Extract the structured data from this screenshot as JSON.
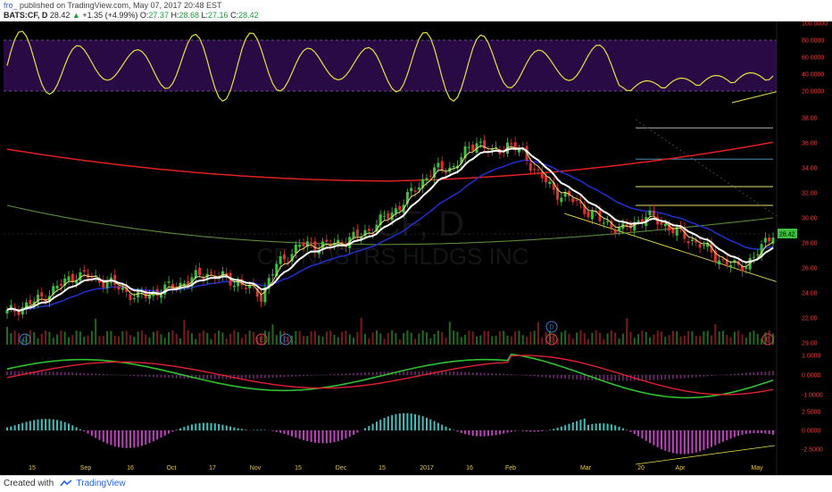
{
  "header": {
    "user": "fro_",
    "published": "published on TradingView.com, May 07, 2017 20:48 EST",
    "symbol": "BATS:CF, D",
    "close": "28.42",
    "change": "+1.35 (+4.99%)",
    "o_label": "O:",
    "o_val": "27.37",
    "h_label": "H:",
    "h_val": "28.68",
    "l_label": "L:",
    "l_val": "27.16",
    "c_label": "C:",
    "c_val": "28.42"
  },
  "footer": {
    "created": "Created with",
    "brand": "TradingView"
  },
  "watermark": {
    "symbol": "CF, D",
    "name": "CF INDSTRS HLDGS INC"
  },
  "price_tag": "28.42",
  "colors": {
    "up": "#3fbf3f",
    "down": "#e03030",
    "sma200": "#e02020",
    "sma100": "#5a8a3a",
    "ema50": "#2030d0",
    "ema20": "#ffffff",
    "ema10": "#e8e070",
    "stoch": "#e8e040",
    "stoch_band": "#2a0a45",
    "macd": "#30c030",
    "signal": "#e02030",
    "hist_pos": "#40c0c0",
    "hist_neg": "#c040c0"
  },
  "chart_data": {
    "type": "candlestick",
    "symbol": "BATS:CF, D",
    "x_labels": [
      "15",
      "Sep",
      "16",
      "Oct",
      "17",
      "Nov",
      "15",
      "Dec",
      "15",
      "2017",
      "16",
      "Feb",
      "Mar",
      "20",
      "Apr",
      "May"
    ],
    "y_labels_price": [
      "38.00",
      "36.00",
      "34.00",
      "32.00",
      "30.00",
      "28.00",
      "26.00",
      "24.00",
      "22.00"
    ],
    "y_labels_stoch": [
      "100.0000",
      "80.0000",
      "60.0000",
      "40.0000",
      "20.0000"
    ],
    "y_labels_volume": [
      "29.00"
    ],
    "y_labels_macd": [
      "1.0000",
      "0.0000",
      "-1.0000"
    ],
    "y_labels_hist": [
      "2.5000",
      "0.0000",
      "-2.5000"
    ],
    "price_range": [
      22,
      38
    ],
    "stoch_range": [
      0,
      100
    ],
    "stoch_bands": [
      20,
      80
    ],
    "last_price": 28.42,
    "fib_levels": [
      37.2,
      34.7,
      32.5,
      31.0
    ],
    "events": [
      {
        "label": "D",
        "x_label": "Aug"
      },
      {
        "label": "E",
        "x_label": "Nov"
      },
      {
        "label": "D",
        "x_label": "Nov"
      },
      {
        "label": "D",
        "x_label": "Feb"
      },
      {
        "label": "E",
        "x_label": "Feb"
      },
      {
        "label": "E",
        "x_label": "May"
      }
    ],
    "close_anchors": [
      [
        0,
        22.4
      ],
      [
        8,
        23.4
      ],
      [
        18,
        25.5
      ],
      [
        26,
        24.9
      ],
      [
        34,
        23.6
      ],
      [
        44,
        24.6
      ],
      [
        52,
        25.6
      ],
      [
        60,
        24.8
      ],
      [
        66,
        23.8
      ],
      [
        70,
        26.2
      ],
      [
        76,
        27.8
      ],
      [
        84,
        27.8
      ],
      [
        92,
        28.6
      ],
      [
        100,
        30.4
      ],
      [
        104,
        31.6
      ],
      [
        110,
        33.7
      ],
      [
        116,
        34.1
      ],
      [
        122,
        36.2
      ],
      [
        126,
        35.1
      ],
      [
        130,
        35.9
      ],
      [
        134,
        35.2
      ],
      [
        138,
        33.5
      ],
      [
        142,
        32.2
      ],
      [
        148,
        31.2
      ],
      [
        154,
        29.8
      ],
      [
        160,
        29.0
      ],
      [
        166,
        30.2
      ],
      [
        170,
        29.6
      ],
      [
        176,
        28.5
      ],
      [
        180,
        27.9
      ],
      [
        186,
        26.5
      ],
      [
        190,
        26.0
      ],
      [
        194,
        26.8
      ],
      [
        198,
        28.42
      ]
    ]
  }
}
